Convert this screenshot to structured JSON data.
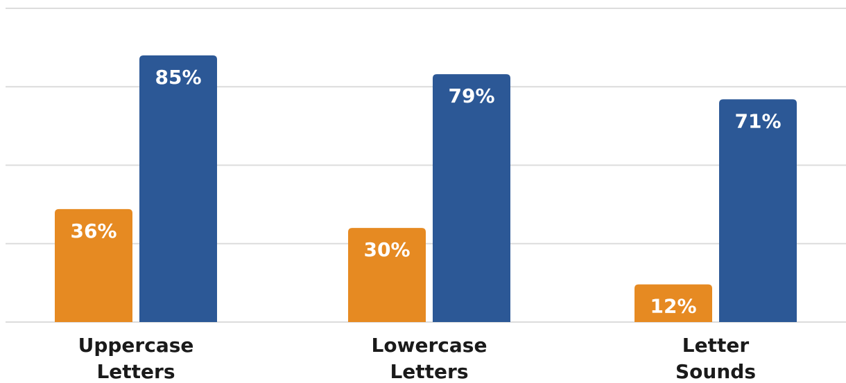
{
  "chart_data": {
    "type": "bar",
    "categories": [
      [
        "Uppercase",
        "Letters"
      ],
      [
        "Lowercase",
        "Letters"
      ],
      [
        "Letter",
        "Sounds"
      ]
    ],
    "series": [
      {
        "values": [
          36,
          30,
          12
        ],
        "labels": [
          "36%",
          "30%",
          "12%"
        ],
        "color": "#e68a22"
      },
      {
        "values": [
          85,
          79,
          71
        ],
        "labels": [
          "85%",
          "79%",
          "71%"
        ],
        "color": "#2c5896"
      }
    ],
    "ylim": [
      0,
      100
    ],
    "gridlines": [
      0,
      25,
      50,
      75,
      100
    ],
    "grid": true,
    "legend": "none"
  }
}
